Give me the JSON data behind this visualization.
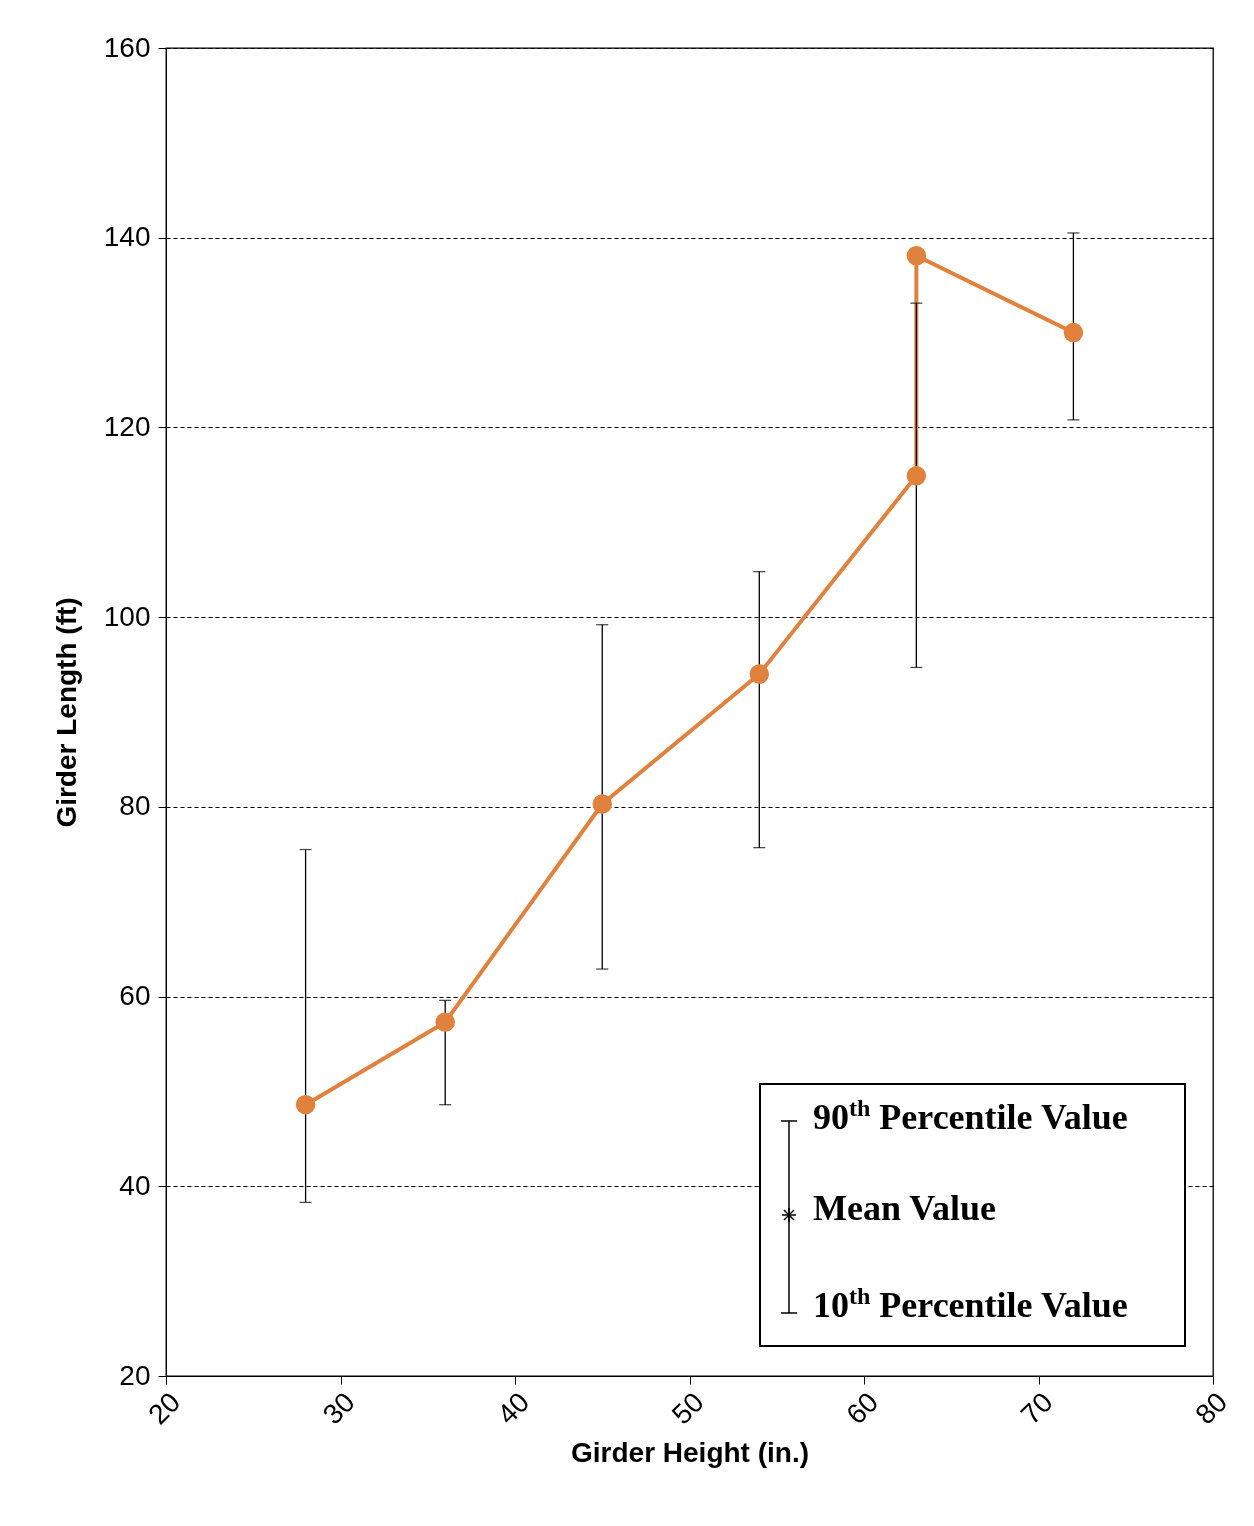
{
  "chart_data": {
    "type": "line",
    "xlabel": "Girder Height (in.)",
    "ylabel": "Girder Length (ft)",
    "x": [
      28,
      36,
      45,
      54,
      63,
      63,
      72
    ],
    "values": [
      48.6,
      57.3,
      80.3,
      94.0,
      114.9,
      138.1,
      130.0
    ],
    "errors": [
      [
        38.3,
        75.5
      ],
      [
        48.6,
        59.6
      ],
      [
        62.9,
        99.2
      ],
      [
        75.7,
        104.8
      ],
      [
        94.7,
        133.1
      ],
      null,
      [
        120.8,
        140.5
      ]
    ],
    "color": "#e0823d",
    "marker": "circle",
    "line_style": "solid",
    "grid": "y",
    "xlim": [
      20,
      80
    ],
    "xticks": [
      20,
      30,
      40,
      50,
      60,
      70,
      80
    ],
    "ylim": [
      20,
      160
    ],
    "yticks": [
      20,
      40,
      60,
      80,
      100,
      120,
      140,
      160
    ],
    "annotations": [
      "90$^{th}$ Percentile Value",
      "Mean Value",
      "10$^{th}$ Percentile Value"
    ]
  }
}
